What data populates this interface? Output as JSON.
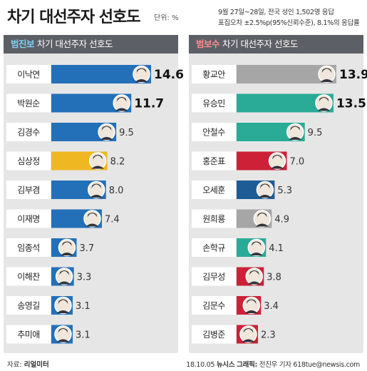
{
  "header": {
    "title": "차기 대선주자 선호도",
    "unit": "단위: %",
    "survey_line1": "9월 27일~28일, 전국 성인 1,502명 응답",
    "survey_line2": "표집오차 ±2.5%p(95%신뢰수준), 8.1%의 응답률"
  },
  "chart_data": [
    {
      "type": "bar",
      "camp": "범진보",
      "title": "차기 대선주자 선호도",
      "categories": [
        "이낙연",
        "박원순",
        "김경수",
        "심상정",
        "김부겸",
        "이재명",
        "임종석",
        "이해찬",
        "송영길",
        "추미애"
      ],
      "values": [
        14.6,
        11.7,
        9.5,
        8.2,
        8.0,
        7.4,
        3.7,
        3.3,
        3.1,
        3.1
      ],
      "value_labels": [
        "14.6",
        "11.7",
        "9.5",
        "8.2",
        "8.0",
        "7.4",
        "3.7",
        "3.3",
        "3.1",
        "3.1"
      ],
      "bar_colors": [
        "#2470b8",
        "#2470b8",
        "#2470b8",
        "#efb822",
        "#2470b8",
        "#2470b8",
        "#2470b8",
        "#2470b8",
        "#2470b8",
        "#2470b8"
      ],
      "xlim": [
        0,
        14.6
      ]
    },
    {
      "type": "bar",
      "camp": "범보수",
      "title": "차기 대선주자 선호도",
      "categories": [
        "황교안",
        "유승민",
        "안철수",
        "홍준표",
        "오세훈",
        "원희룡",
        "손학규",
        "김무성",
        "김문수",
        "김병준"
      ],
      "values": [
        13.9,
        13.5,
        9.5,
        7.0,
        5.3,
        4.9,
        4.1,
        3.8,
        3.4,
        2.3
      ],
      "value_labels": [
        "13.9",
        "13.5",
        "9.5",
        "7.0",
        "5.3",
        "4.9",
        "4.1",
        "3.8",
        "3.4",
        "2.3"
      ],
      "bar_colors": [
        "#a6a6a6",
        "#2aab97",
        "#2aab97",
        "#cc2136",
        "#1d5c94",
        "#a6a6a6",
        "#2aab97",
        "#cc2136",
        "#cc2136",
        "#cc2136"
      ],
      "xlim": [
        0,
        13.9
      ]
    }
  ],
  "footer": {
    "source_label": "자료:",
    "source": "리얼미터",
    "date": "18.10.05",
    "agency": "뉴시스 그래픽:",
    "author": "전진우 기자 618tue@newsis.com"
  },
  "colors": {
    "progressive_bar": "#2470b8",
    "justice_bar": "#efb822",
    "neutral_bar": "#a6a6a6",
    "bareun_bar": "#2aab97",
    "liberty_bar": "#cc2136",
    "header_bg": "#5d5f66",
    "panel_bg": "#e6e6e6"
  }
}
